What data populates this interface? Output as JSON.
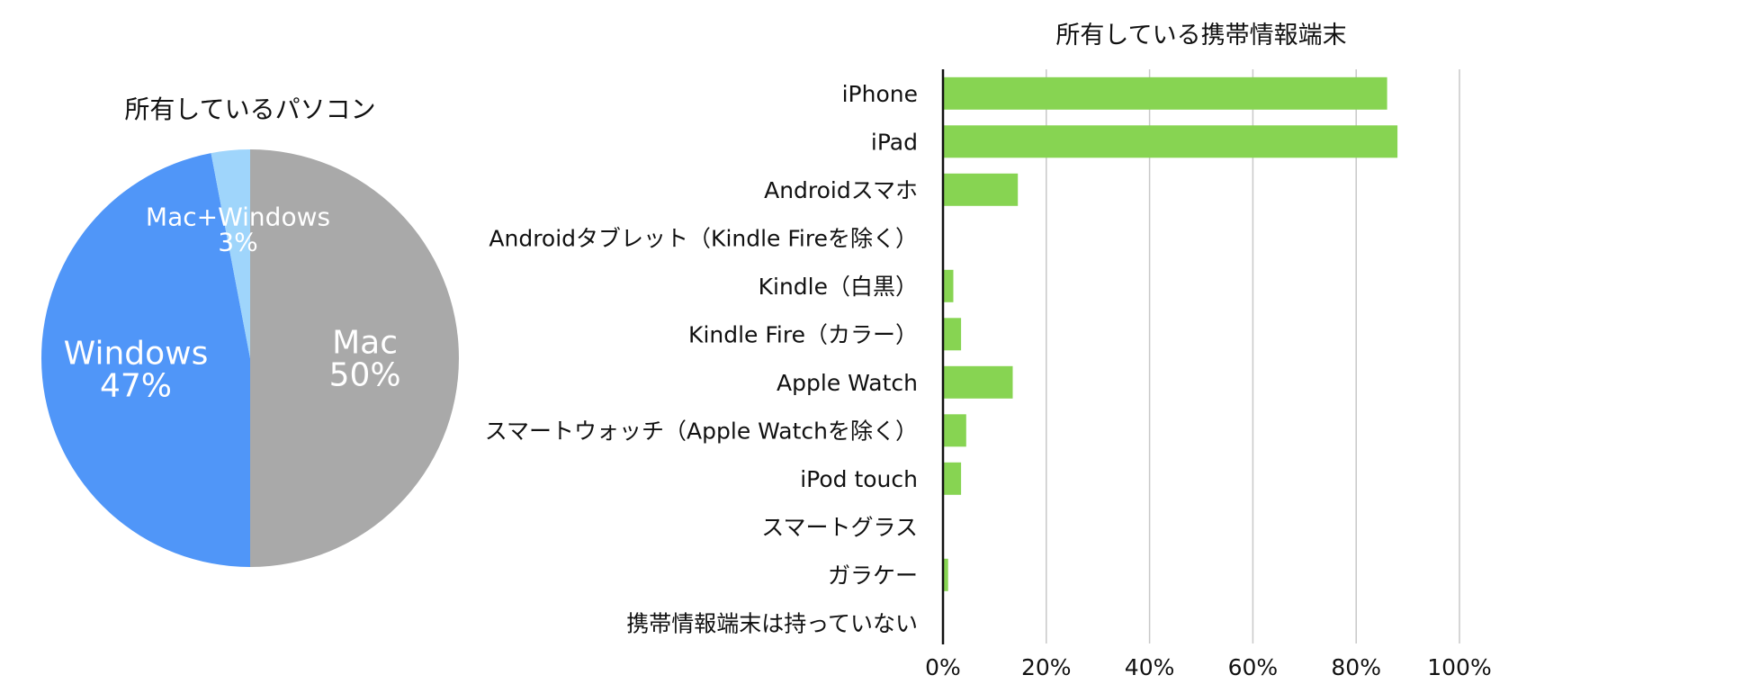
{
  "chart_data": [
    {
      "type": "pie",
      "title": "所有しているパソコン",
      "slices": [
        {
          "label": "Mac",
          "value": 50,
          "display": "50%",
          "color": "#a9a9a9"
        },
        {
          "label": "Windows",
          "value": 47,
          "display": "47%",
          "color": "#5096f8"
        },
        {
          "label": "Mac+Windows",
          "value": 3,
          "display": "3%",
          "color": "#9fd5fb"
        }
      ]
    },
    {
      "type": "bar",
      "orientation": "horizontal",
      "title": "所有している携帯情報端末",
      "categories": [
        "iPhone",
        "iPad",
        "Androidスマホ",
        "Androidタブレット（Kindle Fireを除く）",
        "Kindle（白黒）",
        "Kindle Fire（カラー）",
        "Apple Watch",
        "スマートウォッチ（Apple Watchを除く）",
        "iPod touch",
        "スマートグラス",
        "ガラケー",
        "携帯情報端末は持っていない"
      ],
      "values": [
        86,
        88,
        14.5,
        0,
        2,
        3.5,
        13.5,
        4.5,
        3.5,
        0,
        1,
        0
      ],
      "xlim": [
        0,
        100
      ],
      "xticks": [
        "0%",
        "20%",
        "40%",
        "60%",
        "80%",
        "100%"
      ],
      "grid": true,
      "bar_color": "#87d452"
    }
  ]
}
